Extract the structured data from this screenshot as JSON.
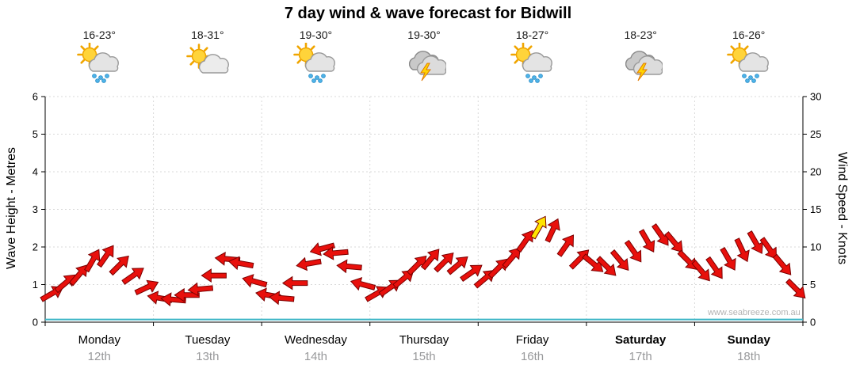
{
  "title": "7 day wind & wave forecast for Bidwill",
  "watermark": "www.seabreeze.com.au",
  "colors": {
    "arrow": "#e8100c",
    "arrow_outline": "#7a0000",
    "highlight": "#ffe400",
    "wave_line": "#3db6c6",
    "grid": "#d9d9d9",
    "axis": "#000000",
    "date_text": "#98999b",
    "watermark_text": "#b3b3b3"
  },
  "days": [
    {
      "name": "Monday",
      "date": "12th",
      "temp": "16-23°",
      "icon": "sun-cloud-rain",
      "bold": false
    },
    {
      "name": "Tuesday",
      "date": "13th",
      "temp": "18-31°",
      "icon": "sun-cloud",
      "bold": false
    },
    {
      "name": "Wednesday",
      "date": "14th",
      "temp": "19-30°",
      "icon": "sun-cloud-rain",
      "bold": false
    },
    {
      "name": "Thursday",
      "date": "15th",
      "temp": "19-30°",
      "icon": "storm",
      "bold": false
    },
    {
      "name": "Friday",
      "date": "16th",
      "temp": "18-27°",
      "icon": "sun-cloud-rain",
      "bold": false
    },
    {
      "name": "Saturday",
      "date": "17th",
      "temp": "18-23°",
      "icon": "storm",
      "bold": true
    },
    {
      "name": "Sunday",
      "date": "18th",
      "temp": "16-26°",
      "icon": "sun-cloud-rain",
      "bold": true
    }
  ],
  "chart_data": {
    "type": "scatter",
    "title": "7 day wind & wave forecast for Bidwill",
    "categories": [
      "Monday 12th",
      "Tuesday 13th",
      "Wednesday 14th",
      "Thursday 15th",
      "Friday 16th",
      "Saturday 17th",
      "Sunday 18th"
    ],
    "points_per_day": 8,
    "left_axis": {
      "label": "Wave Height - Metres",
      "range": [
        0,
        6
      ],
      "ticks": [
        0,
        1,
        2,
        3,
        4,
        5,
        6
      ]
    },
    "right_axis": {
      "label": "Wind Speed - Knots",
      "range": [
        0,
        30
      ],
      "ticks": [
        0,
        5,
        10,
        15,
        20,
        25,
        30
      ]
    },
    "series": [
      {
        "name": "Wind speed & direction",
        "units": "knots",
        "axis": "right",
        "color": "#e8100c"
      },
      {
        "name": "Wave height",
        "units": "metres",
        "axis": "left",
        "color": "#3db6c6"
      }
    ],
    "wind_speed_knots": [
      3.8,
      5.2,
      6.3,
      8.2,
      8.8,
      7.6,
      6.2,
      4.6,
      3.2,
      3.0,
      3.6,
      4.4,
      6.2,
      8.4,
      7.8,
      5.4,
      3.6,
      3.2,
      5.2,
      7.8,
      9.8,
      9.2,
      7.4,
      5.0,
      3.8,
      4.6,
      5.8,
      7.6,
      8.4,
      8.0,
      7.6,
      6.6,
      5.8,
      7.2,
      8.6,
      10.8,
      12.6,
      12.2,
      10.2,
      8.4,
      7.8,
      7.4,
      8.2,
      9.4,
      10.8,
      11.6,
      10.6,
      8.2,
      6.8,
      7.2,
      8.4,
      9.6,
      10.6,
      9.8,
      7.6,
      4.4
    ],
    "wind_direction_deg": [
      -30,
      -40,
      -50,
      -60,
      -55,
      -45,
      -35,
      -25,
      190,
      185,
      180,
      175,
      180,
      185,
      190,
      195,
      190,
      185,
      180,
      170,
      165,
      175,
      185,
      195,
      -30,
      -35,
      -40,
      -45,
      -50,
      -45,
      -40,
      -35,
      -40,
      -45,
      -50,
      -55,
      -60,
      -65,
      -55,
      -45,
      40,
      45,
      50,
      55,
      60,
      55,
      50,
      45,
      50,
      55,
      60,
      65,
      60,
      55,
      50,
      45
    ],
    "wave_height_m": 0.07,
    "highlight_point": {
      "index": 36,
      "color": "#ffe400"
    }
  }
}
